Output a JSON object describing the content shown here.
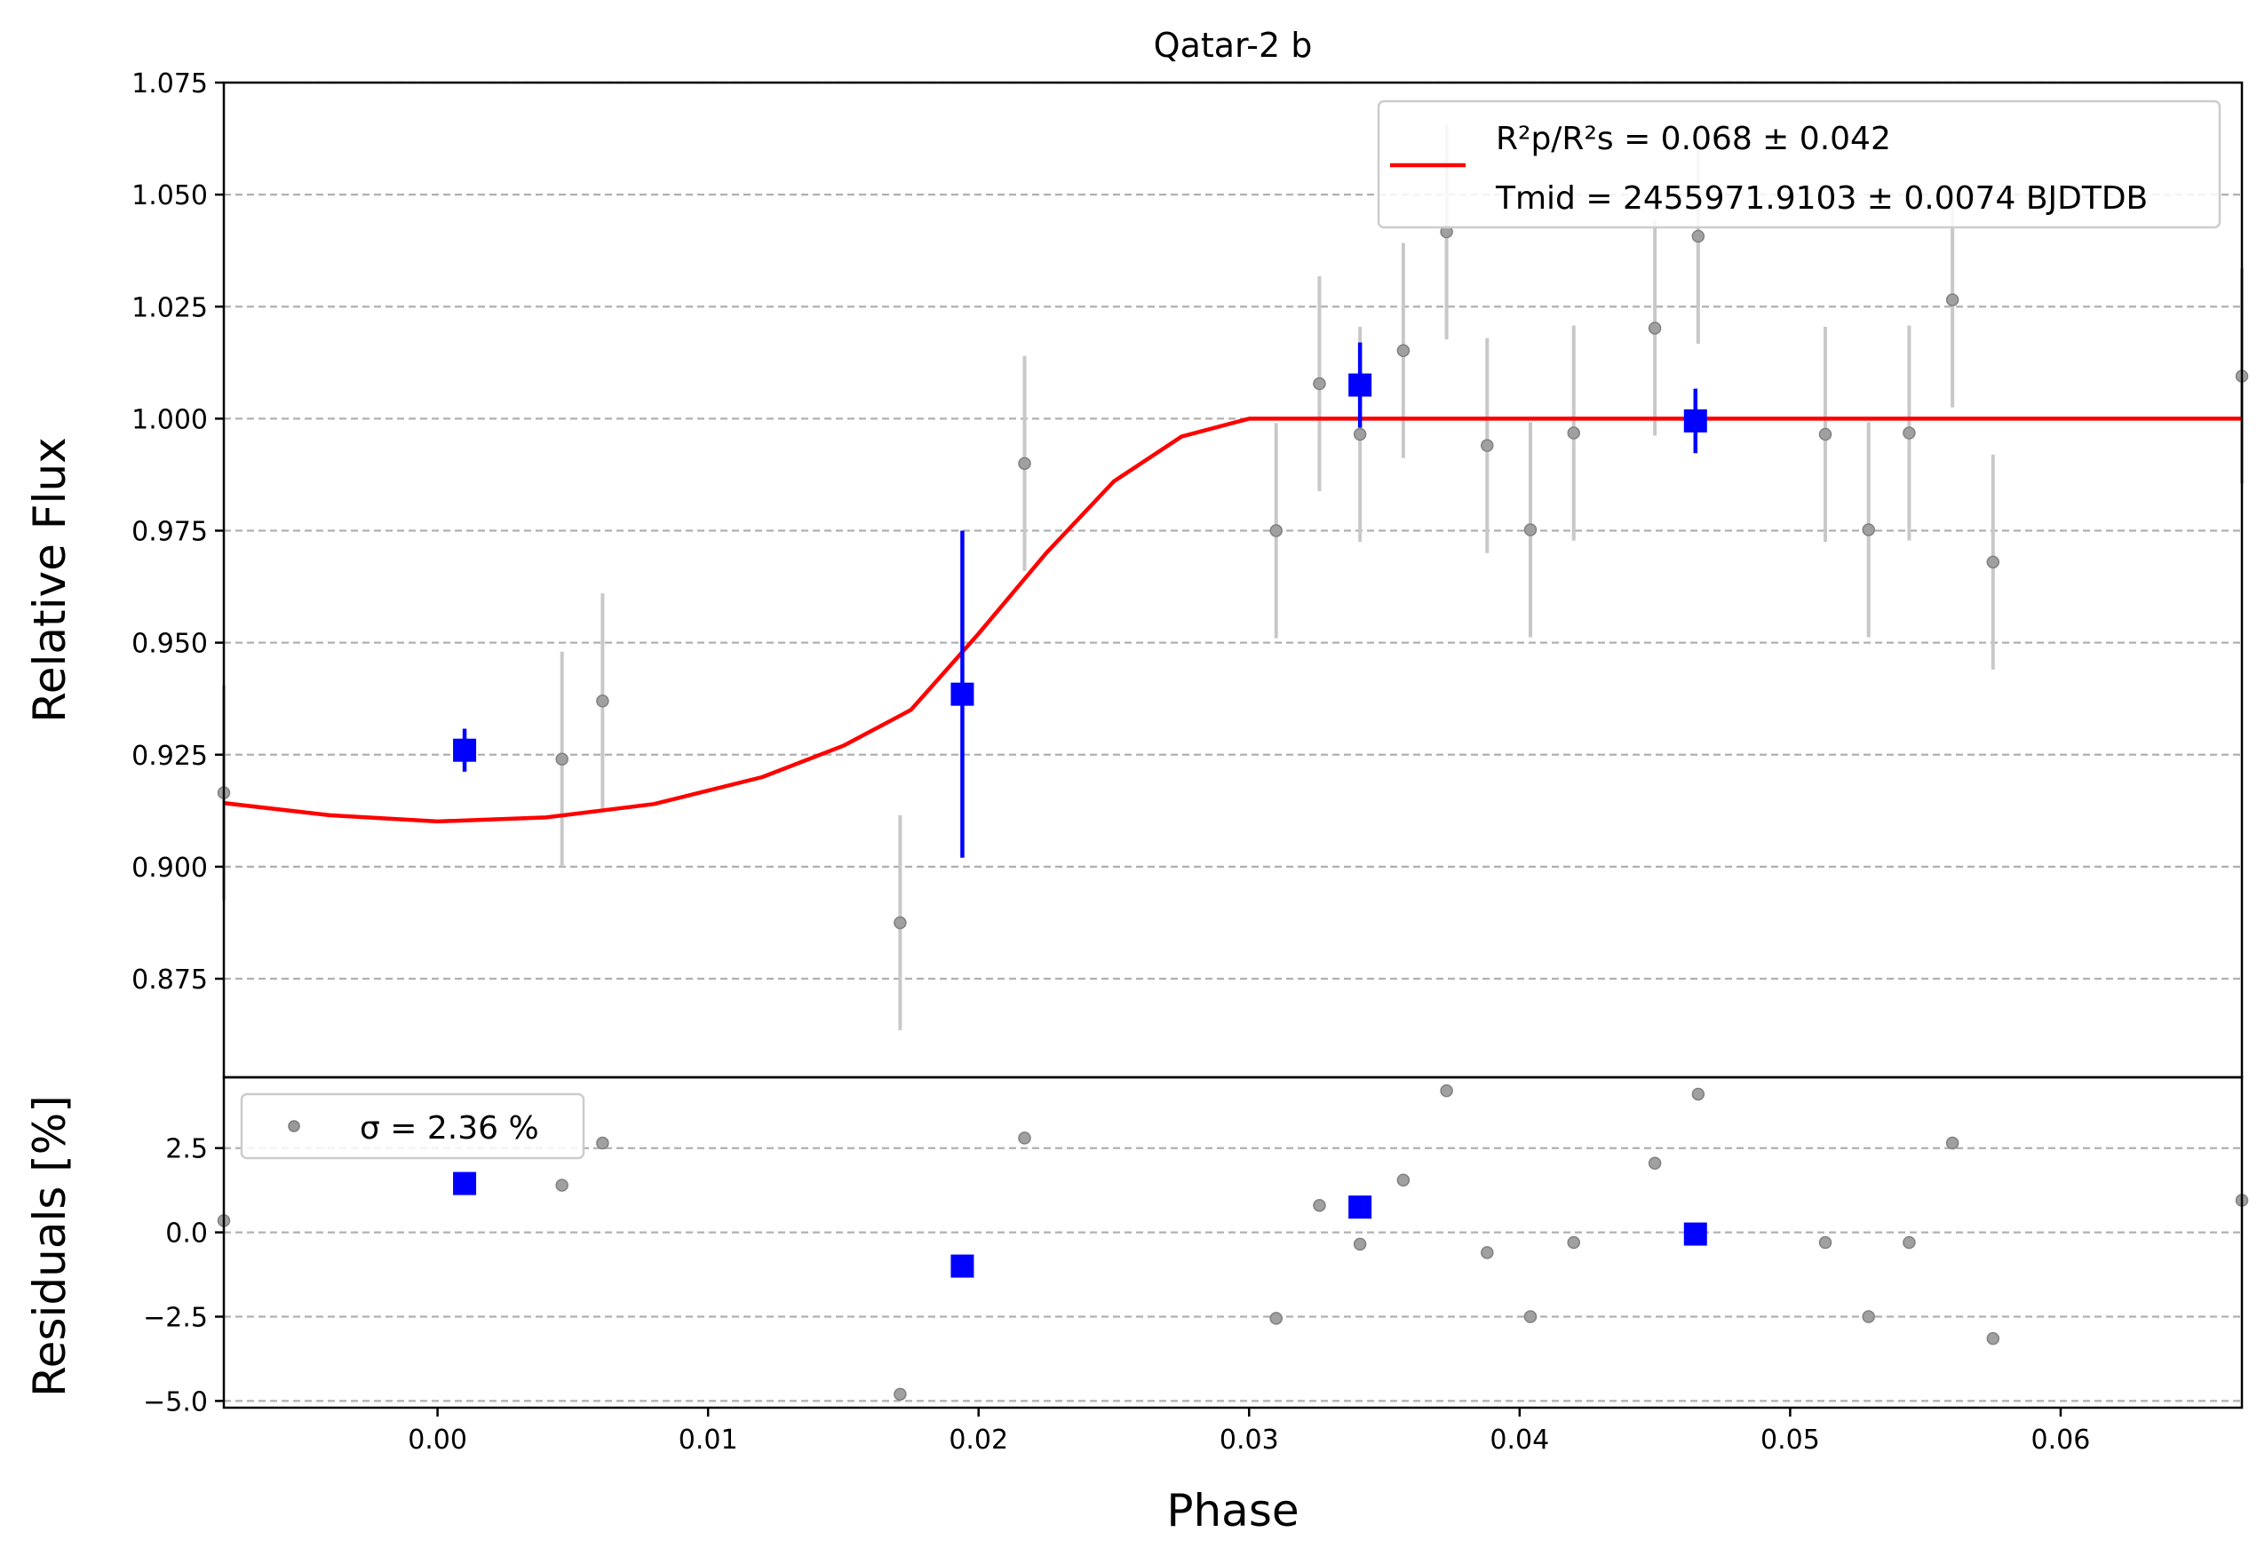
{
  "chart_data": [
    {
      "type": "scatter",
      "title": "Qatar-2 b",
      "xlabel": "",
      "ylabel": "Relative Flux",
      "xlim": [
        -0.0079,
        0.0667
      ],
      "ylim": [
        0.853,
        1.075
      ],
      "yticks": [
        "0.875",
        "0.900",
        "0.925",
        "0.950",
        "0.975",
        "1.000",
        "1.025",
        "1.050",
        "1.075"
      ],
      "grid": "horizontal dashed",
      "legend": {
        "placement": "upper-right",
        "line1": "R²p/R²s = 0.068 ± 0.042",
        "line2": "Tmid = 2455971.9103 ± 0.0074 BJDTDB"
      },
      "series": [
        {
          "name": "",
          "style": "gray points with error bars",
          "color": "#808080",
          "points": [
            {
              "x": -0.0079,
              "y": 0.9165,
              "err": 0.024
            },
            {
              "x": 0.0046,
              "y": 0.924,
              "err": 0.024
            },
            {
              "x": 0.0061,
              "y": 0.937,
              "err": 0.024
            },
            {
              "x": 0.0171,
              "y": 0.8875,
              "err": 0.024
            },
            {
              "x": 0.0217,
              "y": 0.99,
              "err": 0.024
            },
            {
              "x": 0.031,
              "y": 0.975,
              "err": 0.024
            },
            {
              "x": 0.0326,
              "y": 1.0078,
              "err": 0.024
            },
            {
              "x": 0.0341,
              "y": 0.9965,
              "err": 0.024
            },
            {
              "x": 0.0357,
              "y": 1.0152,
              "err": 0.024
            },
            {
              "x": 0.0373,
              "y": 1.0417,
              "err": 0.024
            },
            {
              "x": 0.0388,
              "y": 0.994,
              "err": 0.024
            },
            {
              "x": 0.0404,
              "y": 0.9752,
              "err": 0.024
            },
            {
              "x": 0.042,
              "y": 0.9968,
              "err": 0.024
            },
            {
              "x": 0.045,
              "y": 1.0202,
              "err": 0.024
            },
            {
              "x": 0.0466,
              "y": 1.0407,
              "err": 0.024
            },
            {
              "x": 0.0513,
              "y": 0.9965,
              "err": 0.024
            },
            {
              "x": 0.0529,
              "y": 0.9752,
              "err": 0.024
            },
            {
              "x": 0.0544,
              "y": 0.9968,
              "err": 0.024
            },
            {
              "x": 0.056,
              "y": 1.0265,
              "err": 0.024
            },
            {
              "x": 0.0575,
              "y": 0.968,
              "err": 0.024
            },
            {
              "x": 0.0667,
              "y": 1.0095,
              "err": 0.024
            }
          ]
        },
        {
          "name": "",
          "style": "blue binned squares with error bars",
          "color": "#0000ff",
          "points": [
            {
              "x": 0.001,
              "y": 0.926,
              "err": 0.0048
            },
            {
              "x": 0.0194,
              "y": 0.9385,
              "err": 0.0365
            },
            {
              "x": 0.0341,
              "y": 1.0075,
              "err": 0.0095
            },
            {
              "x": 0.0465,
              "y": 0.9995,
              "err": 0.0072
            }
          ]
        },
        {
          "name": "R²p/R²s = 0.068 ± 0.042",
          "style": "red model line",
          "color": "#ff0000",
          "points": [
            {
              "x": -0.0079,
              "y": 0.9142
            },
            {
              "x": -0.004,
              "y": 0.9115
            },
            {
              "x": 0.0,
              "y": 0.9101
            },
            {
              "x": 0.004,
              "y": 0.911
            },
            {
              "x": 0.008,
              "y": 0.914
            },
            {
              "x": 0.012,
              "y": 0.92
            },
            {
              "x": 0.015,
              "y": 0.927
            },
            {
              "x": 0.0175,
              "y": 0.935
            },
            {
              "x": 0.02,
              "y": 0.952
            },
            {
              "x": 0.0225,
              "y": 0.97
            },
            {
              "x": 0.025,
              "y": 0.986
            },
            {
              "x": 0.0275,
              "y": 0.996
            },
            {
              "x": 0.03,
              "y": 1.0
            },
            {
              "x": 0.0667,
              "y": 1.0
            }
          ]
        }
      ]
    },
    {
      "type": "scatter",
      "title": "",
      "xlabel": "Phase",
      "ylabel": "Residuals [%]",
      "xlim": [
        -0.0079,
        0.0667
      ],
      "ylim": [
        -5.2,
        4.6
      ],
      "xticks": [
        "0.00",
        "0.01",
        "0.02",
        "0.03",
        "0.04",
        "0.05",
        "0.06"
      ],
      "yticks": [
        "−5.0",
        "−2.5",
        "0.0",
        "2.5"
      ],
      "grid": "horizontal dashed",
      "legend": {
        "placement": "upper-left",
        "label": "σ = 2.36 %"
      },
      "series": [
        {
          "name": "σ = 2.36 %",
          "style": "gray points",
          "color": "#808080",
          "points": [
            {
              "x": -0.0079,
              "y": 0.35
            },
            {
              "x": 0.0046,
              "y": 1.4
            },
            {
              "x": 0.0061,
              "y": 2.65
            },
            {
              "x": 0.0171,
              "y": -4.8
            },
            {
              "x": 0.0217,
              "y": 2.8
            },
            {
              "x": 0.031,
              "y": -2.55
            },
            {
              "x": 0.0326,
              "y": 0.8
            },
            {
              "x": 0.0341,
              "y": -0.35
            },
            {
              "x": 0.0357,
              "y": 1.55
            },
            {
              "x": 0.0373,
              "y": 4.2
            },
            {
              "x": 0.0388,
              "y": -0.6
            },
            {
              "x": 0.0404,
              "y": -2.5
            },
            {
              "x": 0.042,
              "y": -0.3
            },
            {
              "x": 0.045,
              "y": 2.05
            },
            {
              "x": 0.0466,
              "y": 4.1
            },
            {
              "x": 0.0513,
              "y": -0.3
            },
            {
              "x": 0.0529,
              "y": -2.5
            },
            {
              "x": 0.0544,
              "y": -0.3
            },
            {
              "x": 0.056,
              "y": 2.65
            },
            {
              "x": 0.0575,
              "y": -3.15
            },
            {
              "x": 0.0667,
              "y": 0.95
            }
          ]
        },
        {
          "name": "",
          "style": "blue binned squares",
          "color": "#0000ff",
          "points": [
            {
              "x": 0.001,
              "y": 1.45
            },
            {
              "x": 0.0194,
              "y": -1.0
            },
            {
              "x": 0.0341,
              "y": 0.75
            },
            {
              "x": 0.0465,
              "y": -0.05
            }
          ]
        }
      ]
    }
  ]
}
